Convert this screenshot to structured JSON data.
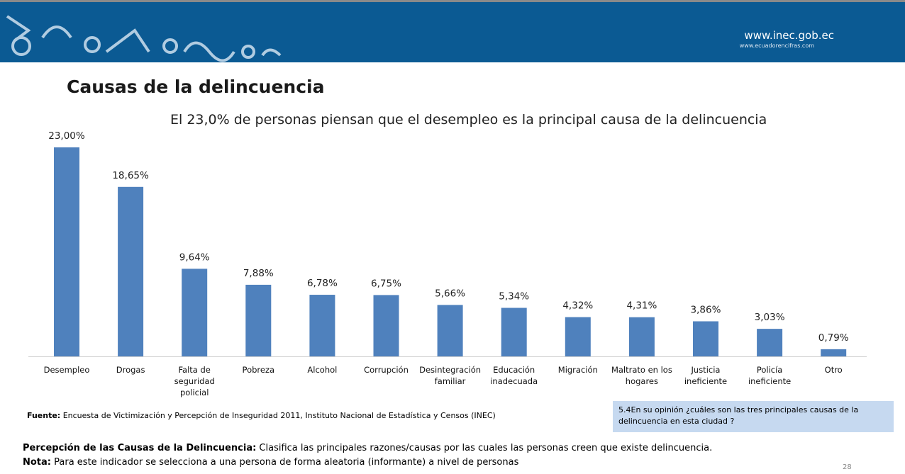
{
  "header": {
    "url": "www.inec.gob.ec",
    "url_secondary": "www.ecuadorencifras.com"
  },
  "chart_data": {
    "type": "bar",
    "title": "Causas de la delincuencia",
    "subtitle": "El 23,0% de personas piensan que el desempleo es la principal causa de la delincuencia",
    "categories": [
      "Desempleo",
      "Drogas",
      "Falta de seguridad policial",
      "Pobreza",
      "Alcohol",
      "Corrupción",
      "Desintegración familiar",
      "Educación inadecuada",
      "Migración",
      "Maltrato en los hogares",
      "Justicia ineficiente",
      "Policía ineficiente",
      "Otro"
    ],
    "values": [
      23.0,
      18.65,
      9.64,
      7.88,
      6.78,
      6.75,
      5.66,
      5.34,
      4.32,
      4.31,
      3.86,
      3.03,
      0.79
    ],
    "value_labels": [
      "23,00%",
      "18,65%",
      "9,64%",
      "7,88%",
      "6,78%",
      "6,75%",
      "5,66%",
      "5,34%",
      "4,32%",
      "4,31%",
      "3,86%",
      "3,03%",
      "0,79%"
    ],
    "color": "#4f81bd"
  },
  "source": {
    "label": "Fuente:",
    "text": " Encuesta de Victimización y Percepción de Inseguridad 2011, Instituto Nacional de Estadística y Censos (INEC)"
  },
  "question": "5.4En su opinión ¿cuáles son las tres principales causas de la delincuencia en esta ciudad ?",
  "notes": [
    {
      "label": "Percepción de las Causas de la Delincuencia:",
      "text": " Clasifica las principales razones/causas por las cuales las personas creen que existe delincuencia."
    },
    {
      "label": "Nota:",
      "text": " Para este indicador se selecciona a una persona  de forma aleatoria (informante)  a nivel de personas"
    }
  ],
  "page_number": "28"
}
